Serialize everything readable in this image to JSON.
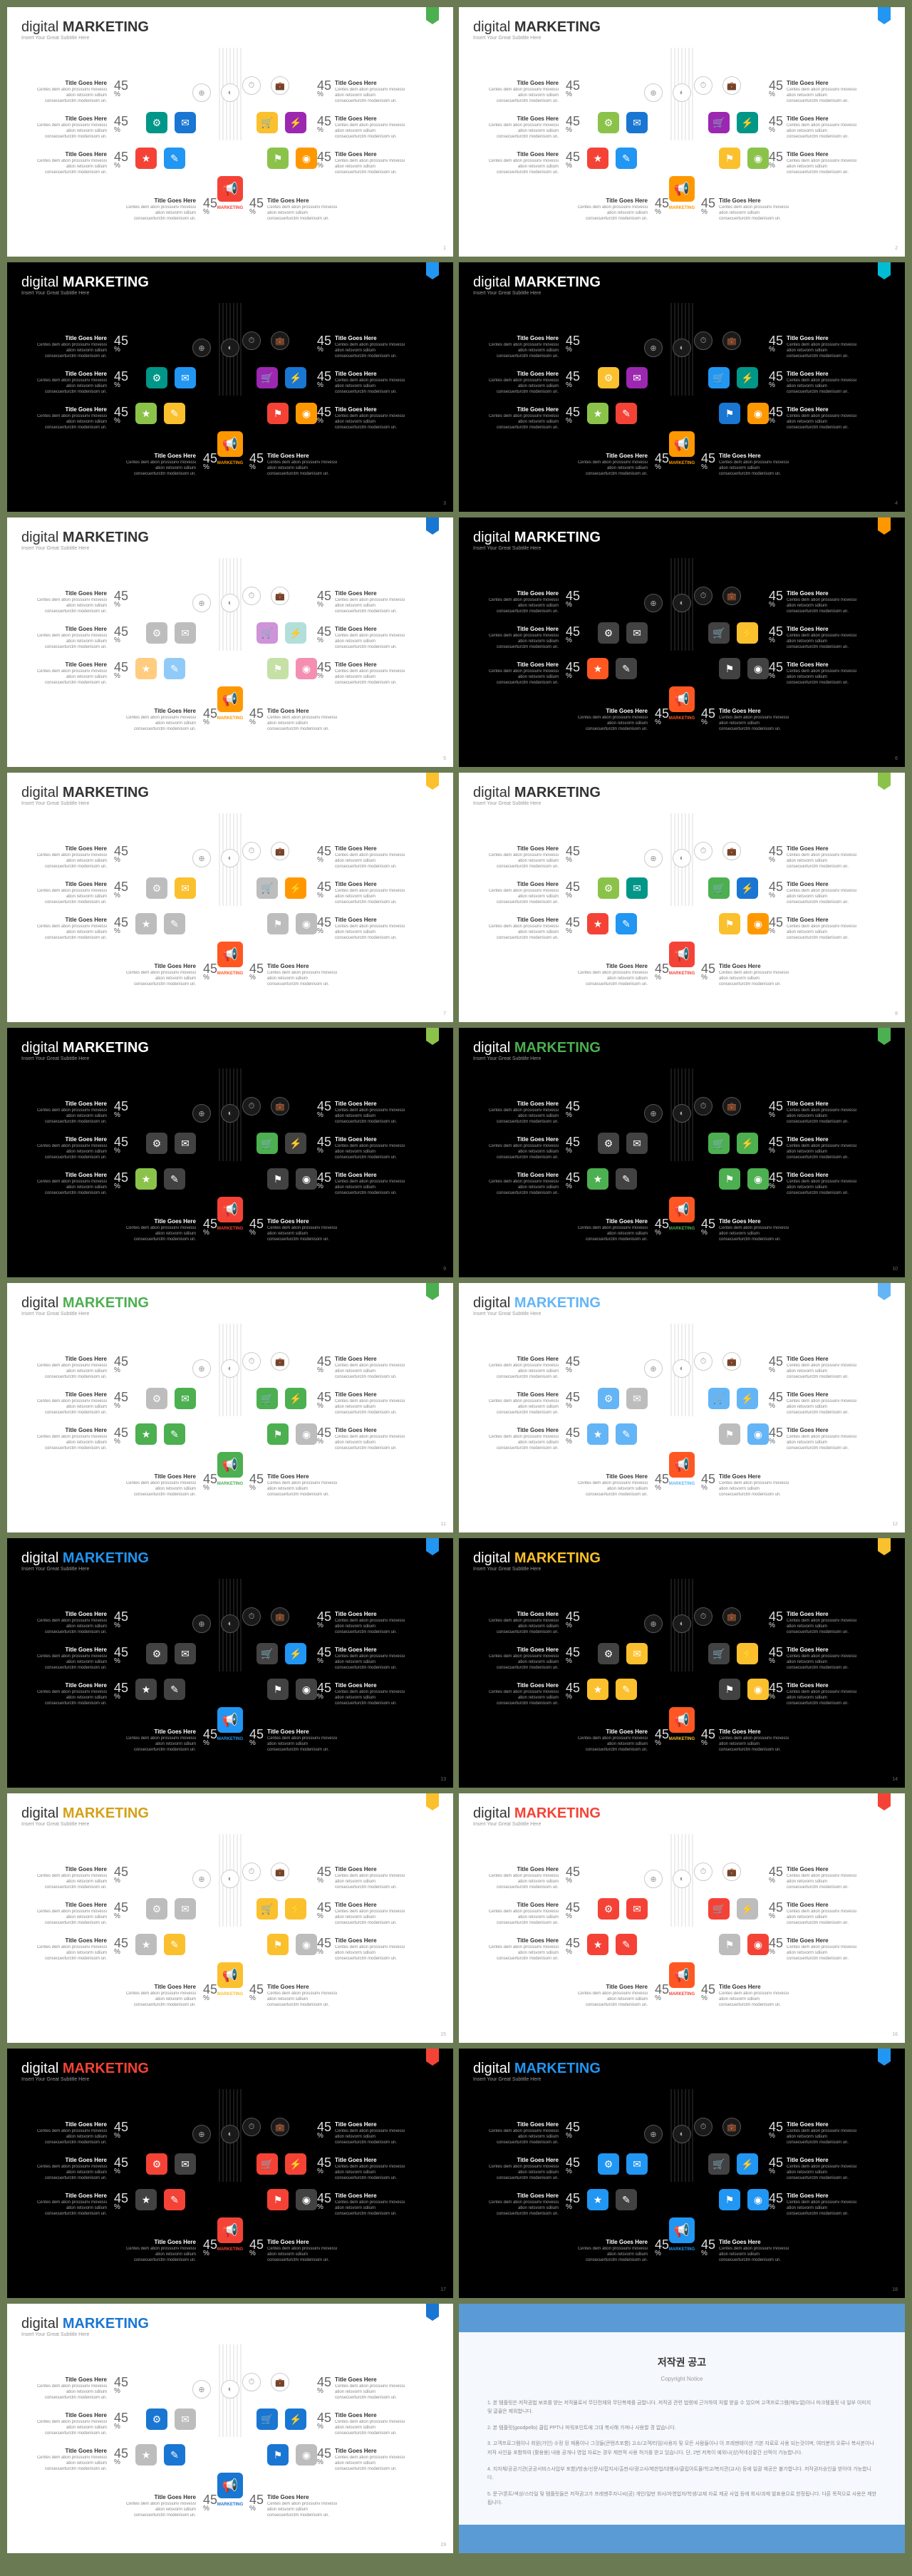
{
  "common": {
    "title_light": "digital",
    "title_bold": "MARKETING",
    "subtitle": "Insert Your Great Subtitle Here",
    "info_title": "Title Goes Here",
    "info_desc": "Centes dem ation prossiunv movessi ation retsvorm sdiium consecuerturctm modenisom un.",
    "stat_num": "45",
    "stat_pct": "%",
    "marketing": "MARKETING"
  },
  "colors": {
    "green": "#4caf50",
    "blue": "#2196f3",
    "teal": "#009688",
    "darkblue": "#1976d2",
    "yellow": "#fbc02d",
    "purple": "#9c27b0",
    "red": "#f44336",
    "orange": "#ff9800",
    "pink": "#e91e63",
    "cyan": "#00bcd4",
    "lime": "#8bc34a",
    "indigo": "#3f51b5",
    "grey": "#9e9e9e",
    "lightblue": "#64b5f6",
    "darkgrey": "#424242",
    "gray_icon": "#888888"
  },
  "slides": [
    {
      "bg": "light",
      "tab": "#4caf50",
      "accent_text": null,
      "icons": [
        "#009688",
        "#1976d2",
        "#fbc02d",
        "#9c27b0",
        "#f44336",
        "#2196f3",
        "#8bc34a",
        "#ff9800"
      ],
      "main_icon": "#f44336",
      "main_color": "#f44336"
    },
    {
      "bg": "light",
      "tab": "#2196f3",
      "accent_text": null,
      "icons": [
        "#8bc34a",
        "#1976d2",
        "#9c27b0",
        "#009688",
        "#f44336",
        "#2196f3",
        "#fbc02d",
        "#8bc34a"
      ],
      "main_icon": "#ff9800",
      "main_color": "#ff9800"
    },
    {
      "bg": "dark",
      "tab": "#2196f3",
      "accent_text": null,
      "icons": [
        "#009688",
        "#2196f3",
        "#9c27b0",
        "#1976d2",
        "#8bc34a",
        "#fbc02d",
        "#f44336",
        "#ff9800"
      ],
      "main_icon": "#ff9800",
      "main_color": "#ff9800"
    },
    {
      "bg": "dark",
      "tab": "#00bcd4",
      "accent_text": null,
      "icons": [
        "#fbc02d",
        "#9c27b0",
        "#2196f3",
        "#009688",
        "#8bc34a",
        "#f44336",
        "#1976d2",
        "#ff9800"
      ],
      "main_icon": "#ff9800",
      "main_color": "#ff9800"
    },
    {
      "bg": "light",
      "tab": "#1976d2",
      "accent_text": null,
      "icons": [
        "#bdbdbd",
        "#bdbdbd",
        "#ce93d8",
        "#b2dfdb",
        "#ffcc80",
        "#90caf9",
        "#c5e1a5",
        "#f48fb1"
      ],
      "main_icon": "#ff9800",
      "main_color": "#ff9800"
    },
    {
      "bg": "dark",
      "tab": "#ff9800",
      "accent_text": null,
      "icons": [
        "#424242",
        "#424242",
        "#424242",
        "#fbc02d",
        "#ff5722",
        "#424242",
        "#424242",
        "#424242"
      ],
      "main_icon": "#ff5722",
      "main_color": "#ff5722"
    },
    {
      "bg": "light",
      "tab": "#fbc02d",
      "accent_text": null,
      "icons": [
        "#bdbdbd",
        "#fbc02d",
        "#bdbdbd",
        "#ff9800",
        "#bdbdbd",
        "#bdbdbd",
        "#bdbdbd",
        "#bdbdbd"
      ],
      "main_icon": "#ff5722",
      "main_color": "#ff5722"
    },
    {
      "bg": "light",
      "tab": "#8bc34a",
      "accent_text": null,
      "icons": [
        "#8bc34a",
        "#009688",
        "#4caf50",
        "#1976d2",
        "#f44336",
        "#2196f3",
        "#fbc02d",
        "#ff9800"
      ],
      "main_icon": "#f44336",
      "main_color": "#f44336"
    },
    {
      "bg": "dark",
      "tab": "#8bc34a",
      "accent_text": null,
      "icons": [
        "#424242",
        "#424242",
        "#4caf50",
        "#424242",
        "#8bc34a",
        "#424242",
        "#424242",
        "#424242"
      ],
      "main_icon": "#f44336",
      "main_color": "#f44336"
    },
    {
      "bg": "dark",
      "tab": "#4caf50",
      "accent_text": "#4caf50",
      "icons": [
        "#424242",
        "#424242",
        "#4caf50",
        "#4caf50",
        "#4caf50",
        "#424242",
        "#4caf50",
        "#4caf50"
      ],
      "main_icon": "#ff5722",
      "main_color": "#4caf50"
    },
    {
      "bg": "light",
      "tab": "#4caf50",
      "accent_text": "#4caf50",
      "icons": [
        "#bdbdbd",
        "#4caf50",
        "#4caf50",
        "#4caf50",
        "#4caf50",
        "#4caf50",
        "#4caf50",
        "#bdbdbd"
      ],
      "main_icon": "#4caf50",
      "main_color": "#4caf50"
    },
    {
      "bg": "light",
      "tab": "#64b5f6",
      "accent_text": "#64b5f6",
      "icons": [
        "#64b5f6",
        "#bdbdbd",
        "#64b5f6",
        "#64b5f6",
        "#64b5f6",
        "#64b5f6",
        "#bdbdbd",
        "#64b5f6"
      ],
      "main_icon": "#ff5722",
      "main_color": "#64b5f6"
    },
    {
      "bg": "dark",
      "tab": "#2196f3",
      "accent_text": "#2196f3",
      "icons": [
        "#424242",
        "#424242",
        "#424242",
        "#2196f3",
        "#424242",
        "#424242",
        "#424242",
        "#424242"
      ],
      "main_icon": "#2196f3",
      "main_color": "#2196f3"
    },
    {
      "bg": "dark",
      "tab": "#fbc02d",
      "accent_text": "#fbc02d",
      "icons": [
        "#424242",
        "#fbc02d",
        "#424242",
        "#fbc02d",
        "#fbc02d",
        "#fbc02d",
        "#424242",
        "#fbc02d"
      ],
      "main_icon": "#ff5722",
      "main_color": "#fbc02d"
    },
    {
      "bg": "light",
      "tab": "#fbc02d",
      "accent_text": "#d4a017",
      "icons": [
        "#bdbdbd",
        "#bdbdbd",
        "#fbc02d",
        "#fbc02d",
        "#bdbdbd",
        "#fbc02d",
        "#fbc02d",
        "#bdbdbd"
      ],
      "main_icon": "#fbc02d",
      "main_color": "#fbc02d"
    },
    {
      "bg": "light",
      "tab": "#f44336",
      "accent_text": "#f44336",
      "icons": [
        "#f44336",
        "#f44336",
        "#f44336",
        "#bdbdbd",
        "#f44336",
        "#f44336",
        "#bdbdbd",
        "#f44336"
      ],
      "main_icon": "#ff5722",
      "main_color": "#f44336"
    },
    {
      "bg": "dark",
      "tab": "#f44336",
      "accent_text": "#f44336",
      "icons": [
        "#f44336",
        "#424242",
        "#f44336",
        "#f44336",
        "#424242",
        "#f44336",
        "#f44336",
        "#424242"
      ],
      "main_icon": "#f44336",
      "main_color": "#f44336"
    },
    {
      "bg": "dark",
      "tab": "#2196f3",
      "accent_text": "#2196f3",
      "icons": [
        "#2196f3",
        "#2196f3",
        "#424242",
        "#2196f3",
        "#2196f3",
        "#424242",
        "#2196f3",
        "#2196f3"
      ],
      "main_icon": "#2196f3",
      "main_color": "#2196f3"
    },
    {
      "bg": "light",
      "tab": "#1976d2",
      "accent_text": "#1976d2",
      "icons": [
        "#1976d2",
        "#bdbdbd",
        "#1976d2",
        "#1976d2",
        "#bdbdbd",
        "#1976d2",
        "#1976d2",
        "#bdbdbd"
      ],
      "main_icon": "#1976d2",
      "main_color": "#1976d2"
    }
  ],
  "copyright": {
    "title": "저작권 공고",
    "subtitle": "Copyright Notice",
    "p1": "1. 본 템플릿은 저작권법 보호를 받는 저작물로서 무단전재와 무단복제를 금합니다. 저작권 관련 법령에 근거하여 처벌 받을 수 있으며 고객프로그램(매뉴얼)이나 마크템플릿 내 일부 이미지 및 글꼴은 제외합니다.",
    "p2": "2. 본 템플릿(goodpello) 클립 PPT나 파워포인트에 그대 복사해 가져나 사용할 경 없습니다.",
    "p3": "3. 고객프로그램이나 회원(가인) 수정 된 제품이나 그것들(콘텐츠포함) 고소/고객/타임/사용자 및 모든 사람들이나 이 프레젠테이션 기본 자료로 사용 되는것이며, 여러분의 오류나 복사본이나 저작 사인을 포함하여 (활용용) 내용 공개나 영업 자료는 경우 제한적 사용 허가를 받고 있습니다. 단, 2번 저촉이 예외나(상)적네상황간 선적이 가능합니다.",
    "p4": "4. 지자체/공공기관(공공서비스사업부 포함)/방송/신문사/잡지사/출판사/광고사/제한업/대행사/클립아트몰/학교/복지관(교사) 등에 일괄 제공은 불가합니다. 저작권자승인을 받아야 가능합니다.",
    "p5": "5. 문구/폰트/색상/스타일 및 템플릿들은 저작권고가 프레젠주자니씨(공) 개인/일반 회사/자영업자/학생/교재 자료 제공 사업 등에 회사/과제 발표용으로 한정됩니다. 다른 목적으로 사용은 제한됩니다."
  },
  "icon_glyphs": [
    "⚙",
    "✉",
    "🛒",
    "⚡",
    "★",
    "✎",
    "⚑",
    "◉"
  ],
  "circle_glyphs": [
    "⏱",
    "💼",
    "⊕",
    "◐"
  ],
  "main_glyph": "📢"
}
